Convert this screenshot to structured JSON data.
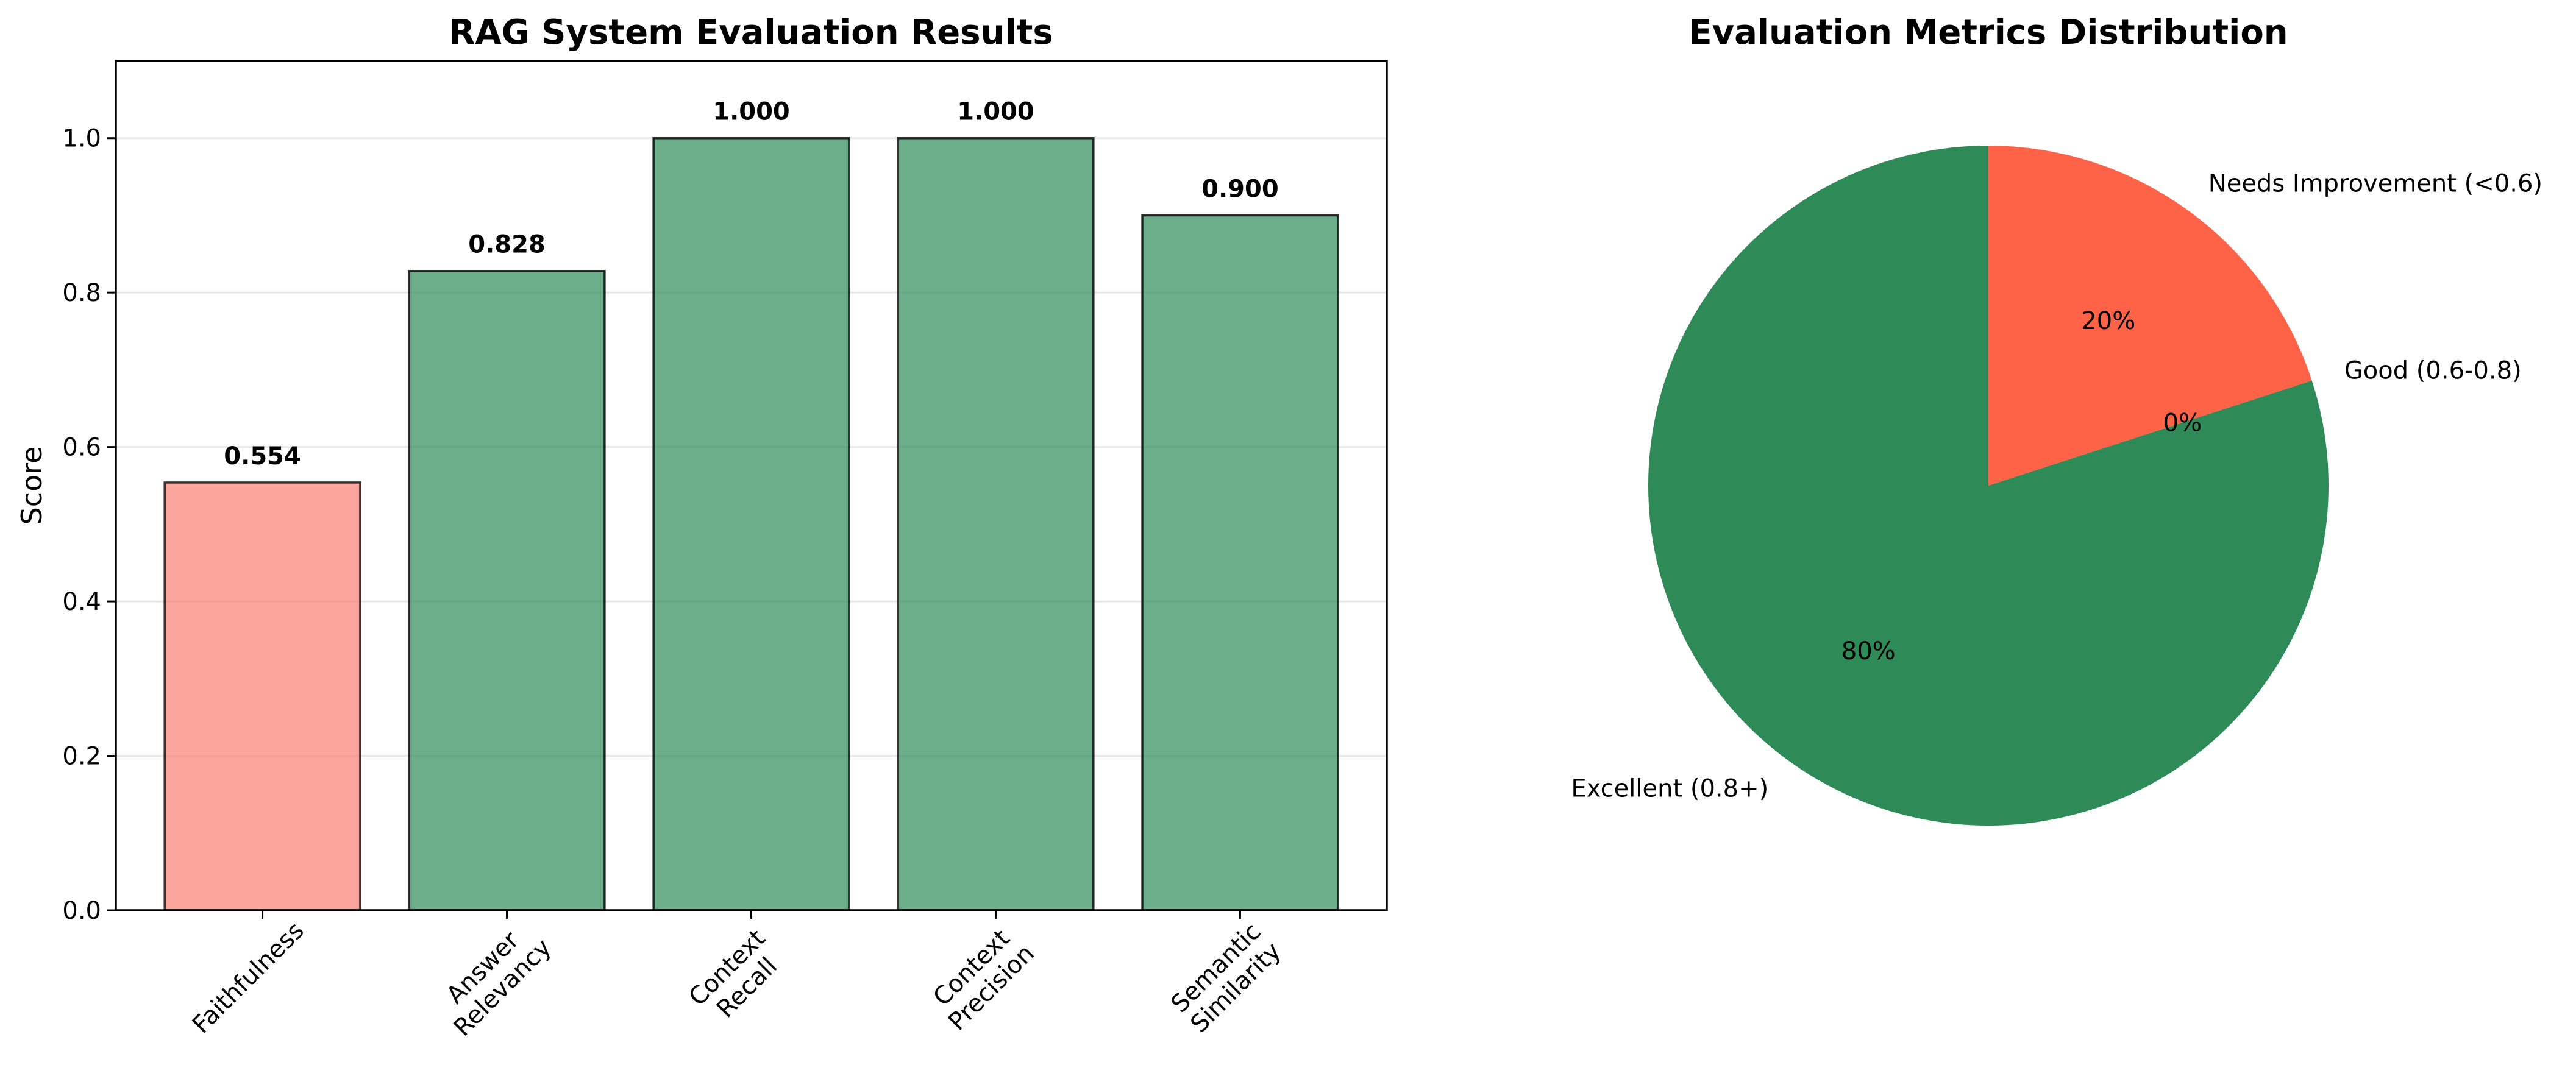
{
  "chart_data": [
    {
      "type": "bar",
      "title": "RAG System Evaluation Results",
      "xlabel": "",
      "ylabel": "Score",
      "ylim": [
        0,
        1.1
      ],
      "yticks": [
        "0.0",
        "0.2",
        "0.4",
        "0.6",
        "0.8",
        "1.0"
      ],
      "grid": "horizontal",
      "categories": [
        [
          "Faithfulness"
        ],
        [
          "Answer",
          "Relevancy"
        ],
        [
          "Context",
          "Recall"
        ],
        [
          "Context",
          "Precision"
        ],
        [
          "Semantic",
          "Similarity"
        ]
      ],
      "values": [
        0.554,
        0.828,
        1.0,
        1.0,
        0.9
      ],
      "value_labels": [
        "0.554",
        "0.828",
        "1.000",
        "1.000",
        "0.900"
      ],
      "bar_colors": [
        "#fa8072",
        "#2e8b57",
        "#2e8b57",
        "#2e8b57",
        "#2e8b57"
      ]
    },
    {
      "type": "pie",
      "title": "Evaluation Metrics Distribution",
      "start_angle_deg": 90,
      "labels": [
        "Needs Improvement (<0.6)",
        "Good (0.6-0.8)",
        "Excellent (0.8+)"
      ],
      "values": [
        20,
        0,
        80
      ],
      "pct_labels": [
        "20%",
        "0%",
        "80%"
      ],
      "colors": [
        "#ff6347",
        "#ffd700",
        "#2e8b57"
      ]
    }
  ]
}
